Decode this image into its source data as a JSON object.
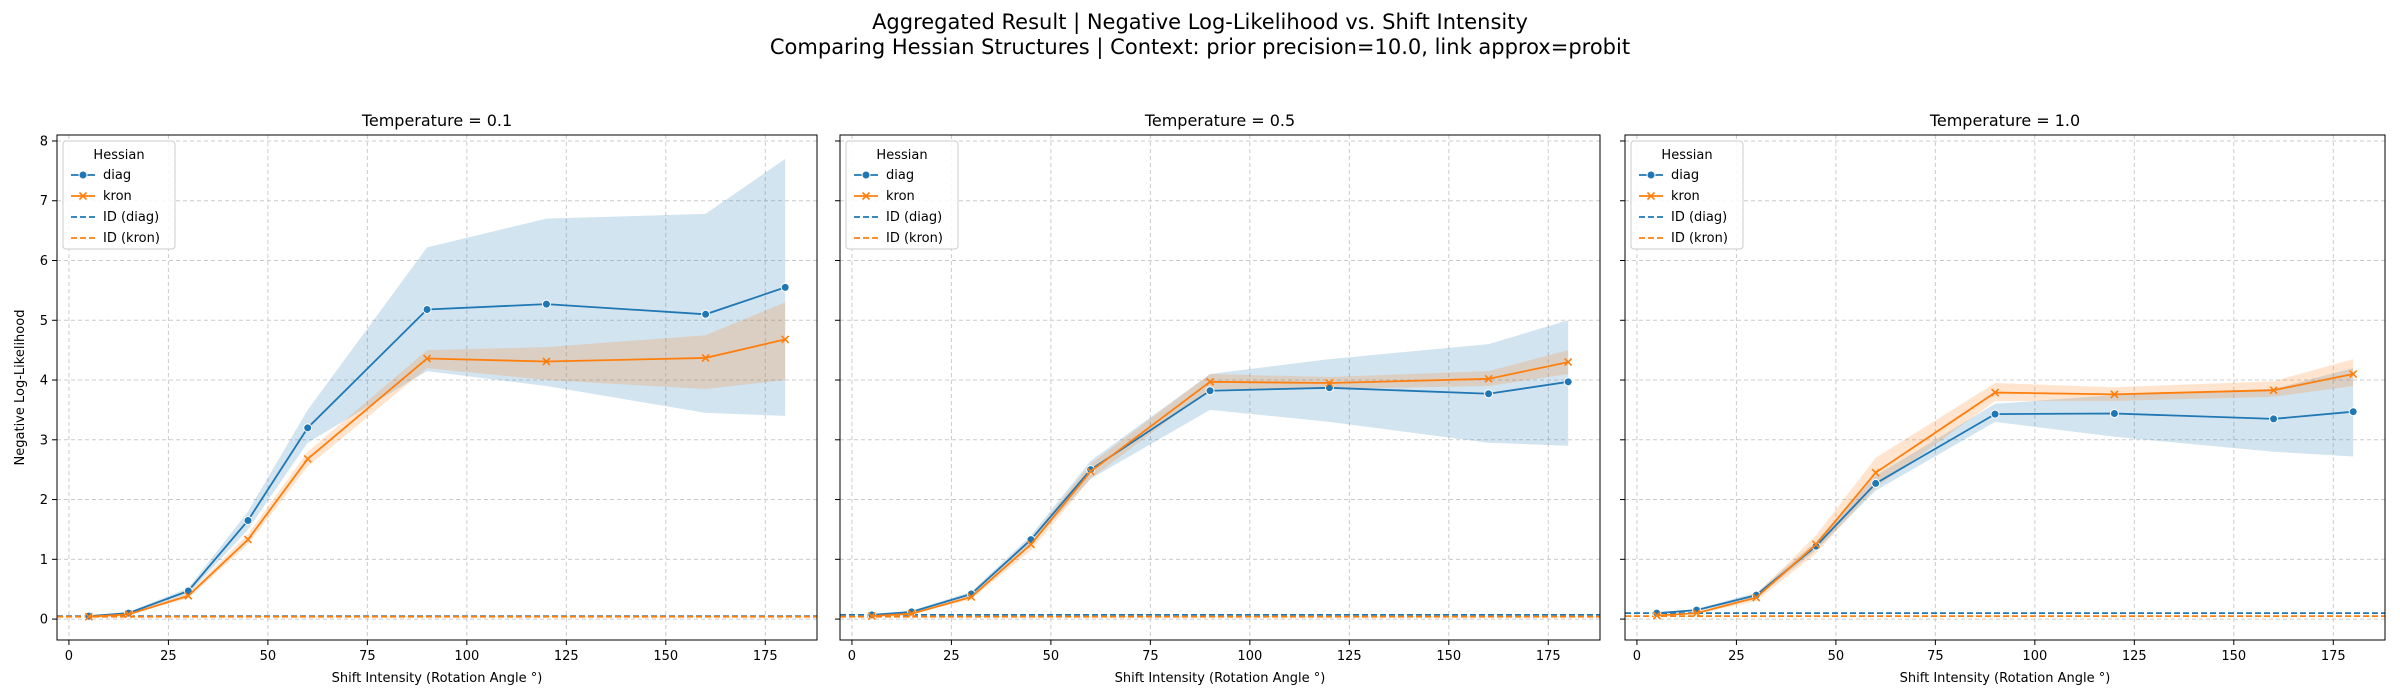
{
  "figure": {
    "title_line1": "Aggregated Result | Negative Log-Likelihood vs. Shift Intensity",
    "title_line2": "Comparing Hessian Structures | Context: prior precision=10.0, link approx=probit"
  },
  "colors": {
    "diag": "#1f77b4",
    "kron": "#ff7f0e",
    "grid": "#cccccc"
  },
  "chart_data": [
    {
      "type": "line",
      "title": "Temperature = 0.1",
      "xlabel": "Shift Intensity (Rotation Angle °)",
      "ylabel": "Negative Log-Likelihood",
      "xlim": [
        -3,
        188
      ],
      "ylim": [
        -0.35,
        8.1
      ],
      "xticks": [
        0,
        25,
        50,
        75,
        100,
        125,
        150,
        175
      ],
      "yticks": [
        0,
        1,
        2,
        3,
        4,
        5,
        6,
        7,
        8
      ],
      "grid": true,
      "legend": {
        "title": "Hessian",
        "position": "upper left",
        "entries": [
          "diag",
          "kron",
          "ID (diag)",
          "ID (kron)"
        ]
      },
      "x": [
        5,
        15,
        30,
        45,
        60,
        90,
        120,
        160,
        180
      ],
      "series": [
        {
          "name": "diag",
          "marker": "circle",
          "linestyle": "solid",
          "values": [
            0.05,
            0.1,
            0.47,
            1.65,
            3.2,
            5.18,
            5.27,
            5.1,
            5.55
          ],
          "lower": [
            0.04,
            0.09,
            0.42,
            1.5,
            2.95,
            4.15,
            3.9,
            3.45,
            3.4
          ],
          "upper": [
            0.06,
            0.12,
            0.52,
            1.8,
            3.5,
            6.22,
            6.7,
            6.78,
            7.7
          ]
        },
        {
          "name": "kron",
          "marker": "x",
          "linestyle": "solid",
          "values": [
            0.04,
            0.08,
            0.39,
            1.33,
            2.68,
            4.36,
            4.31,
            4.37,
            4.68
          ],
          "lower": [
            0.035,
            0.075,
            0.35,
            1.25,
            2.55,
            4.2,
            4.0,
            3.85,
            4.0
          ],
          "upper": [
            0.045,
            0.09,
            0.43,
            1.42,
            2.8,
            4.5,
            4.55,
            4.75,
            5.3
          ]
        },
        {
          "name": "ID (diag)",
          "linestyle": "dashed",
          "hline": 0.05
        },
        {
          "name": "ID (kron)",
          "linestyle": "dashed",
          "hline": 0.04
        }
      ]
    },
    {
      "type": "line",
      "title": "Temperature = 0.5",
      "xlabel": "Shift Intensity (Rotation Angle °)",
      "ylabel": "",
      "xlim": [
        -3,
        188
      ],
      "ylim": [
        -0.35,
        8.1
      ],
      "xticks": [
        0,
        25,
        50,
        75,
        100,
        125,
        150,
        175
      ],
      "yticks": [
        0,
        1,
        2,
        3,
        4,
        5,
        6,
        7,
        8
      ],
      "grid": true,
      "legend": {
        "title": "Hessian",
        "position": "upper left",
        "entries": [
          "diag",
          "kron",
          "ID (diag)",
          "ID (kron)"
        ]
      },
      "x": [
        5,
        15,
        30,
        45,
        60,
        90,
        120,
        160,
        180
      ],
      "series": [
        {
          "name": "diag",
          "marker": "circle",
          "linestyle": "solid",
          "values": [
            0.07,
            0.12,
            0.42,
            1.33,
            2.5,
            3.82,
            3.87,
            3.77,
            3.97
          ],
          "lower": [
            0.06,
            0.1,
            0.38,
            1.25,
            2.35,
            3.5,
            3.3,
            2.95,
            2.9
          ],
          "upper": [
            0.08,
            0.14,
            0.46,
            1.4,
            2.65,
            4.1,
            4.35,
            4.6,
            5.0
          ]
        },
        {
          "name": "kron",
          "marker": "x",
          "linestyle": "solid",
          "values": [
            0.05,
            0.09,
            0.37,
            1.25,
            2.47,
            3.97,
            3.95,
            4.02,
            4.3
          ],
          "lower": [
            0.04,
            0.08,
            0.33,
            1.15,
            2.35,
            3.85,
            3.85,
            3.9,
            4.1
          ],
          "upper": [
            0.06,
            0.1,
            0.42,
            1.35,
            2.6,
            4.1,
            4.05,
            4.15,
            4.5
          ]
        },
        {
          "name": "ID (diag)",
          "linestyle": "dashed",
          "hline": 0.07
        },
        {
          "name": "ID (kron)",
          "linestyle": "dashed",
          "hline": 0.04
        }
      ]
    },
    {
      "type": "line",
      "title": "Temperature = 1.0",
      "xlabel": "Shift Intensity (Rotation Angle °)",
      "ylabel": "",
      "xlim": [
        -3,
        188
      ],
      "ylim": [
        -0.35,
        8.1
      ],
      "xticks": [
        0,
        25,
        50,
        75,
        100,
        125,
        150,
        175
      ],
      "yticks": [
        0,
        1,
        2,
        3,
        4,
        5,
        6,
        7,
        8
      ],
      "grid": true,
      "legend": {
        "title": "Hessian",
        "position": "upper left",
        "entries": [
          "diag",
          "kron",
          "ID (diag)",
          "ID (kron)"
        ]
      },
      "x": [
        5,
        15,
        30,
        45,
        60,
        90,
        120,
        160,
        180
      ],
      "series": [
        {
          "name": "diag",
          "marker": "circle",
          "linestyle": "solid",
          "values": [
            0.1,
            0.15,
            0.4,
            1.22,
            2.27,
            3.43,
            3.44,
            3.35,
            3.47
          ],
          "lower": [
            0.09,
            0.13,
            0.36,
            1.15,
            2.15,
            3.3,
            3.05,
            2.8,
            2.72
          ],
          "upper": [
            0.11,
            0.17,
            0.44,
            1.3,
            2.4,
            3.6,
            3.75,
            3.85,
            4.2
          ]
        },
        {
          "name": "kron",
          "marker": "x",
          "linestyle": "solid",
          "values": [
            0.06,
            0.1,
            0.36,
            1.25,
            2.45,
            3.79,
            3.76,
            3.83,
            4.1
          ],
          "lower": [
            0.05,
            0.09,
            0.3,
            1.1,
            2.2,
            3.65,
            3.65,
            3.72,
            3.9
          ],
          "upper": [
            0.07,
            0.11,
            0.42,
            1.4,
            2.7,
            3.95,
            3.88,
            3.98,
            4.35
          ]
        },
        {
          "name": "ID (diag)",
          "linestyle": "dashed",
          "hline": 0.1
        },
        {
          "name": "ID (kron)",
          "linestyle": "dashed",
          "hline": 0.05
        }
      ]
    }
  ]
}
